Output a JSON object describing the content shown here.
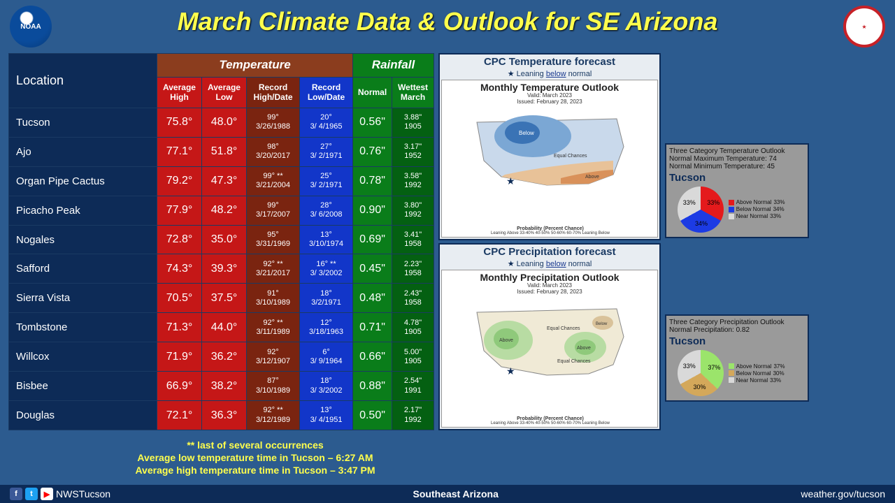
{
  "title": "March Climate Data & Outlook for SE Arizona",
  "logos": {
    "noaa": "NOAA",
    "nws": "NWS"
  },
  "headers": {
    "location": "Location",
    "temp": "Temperature",
    "rain": "Rainfall",
    "avgHigh": "Average High",
    "avgLow": "Average Low",
    "recHigh": "Record High/Date",
    "recLow": "Record Low/Date",
    "normal": "Normal",
    "wettest": "Wettest March"
  },
  "rows": [
    {
      "loc": "Tucson",
      "ah": "75.8°",
      "al": "48.0°",
      "rh": "99°",
      "rhd": "3/26/1988",
      "rl": "20°",
      "rld": "3/ 4/1965",
      "n": "0.56\"",
      "w": "3.88\"",
      "wy": "1905"
    },
    {
      "loc": "Ajo",
      "ah": "77.1°",
      "al": "51.8°",
      "rh": "98°",
      "rhd": "3/20/2017",
      "rl": "27°",
      "rld": "3/ 2/1971",
      "n": "0.76\"",
      "w": "3.17\"",
      "wy": "1952"
    },
    {
      "loc": "Organ Pipe Cactus",
      "ah": "79.2°",
      "al": "47.3°",
      "rh": "99° **",
      "rhd": "3/21/2004",
      "rl": "25°",
      "rld": "3/ 2/1971",
      "n": "0.78\"",
      "w": "3.58\"",
      "wy": "1992"
    },
    {
      "loc": "Picacho Peak",
      "ah": "77.9°",
      "al": "48.2°",
      "rh": "99°",
      "rhd": "3/17/2007",
      "rl": "28°",
      "rld": "3/ 6/2008",
      "n": "0.90\"",
      "w": "3.80\"",
      "wy": "1992"
    },
    {
      "loc": "Nogales",
      "ah": "72.8°",
      "al": "35.0°",
      "rh": "95°",
      "rhd": "3/31/1969",
      "rl": "13°",
      "rld": "3/10/1974",
      "n": "0.69\"",
      "w": "3.41\"",
      "wy": "1958"
    },
    {
      "loc": "Safford",
      "ah": "74.3°",
      "al": "39.3°",
      "rh": "92° **",
      "rhd": "3/21/2017",
      "rl": "16° **",
      "rld": "3/ 3/2002",
      "n": "0.45\"",
      "w": "2.23\"",
      "wy": "1958"
    },
    {
      "loc": "Sierra Vista",
      "ah": "70.5°",
      "al": "37.5°",
      "rh": "91°",
      "rhd": "3/10/1989",
      "rl": "18°",
      "rld": "3/2/1971",
      "n": "0.48\"",
      "w": "2.43\"",
      "wy": "1958"
    },
    {
      "loc": "Tombstone",
      "ah": "71.3°",
      "al": "44.0°",
      "rh": "92° **",
      "rhd": "3/11/1989",
      "rl": "12°",
      "rld": "3/18/1963",
      "n": "0.71\"",
      "w": "4.78\"",
      "wy": "1905"
    },
    {
      "loc": "Willcox",
      "ah": "71.9°",
      "al": "36.2°",
      "rh": "92°",
      "rhd": "3/12/1907",
      "rl": "6°",
      "rld": "3/ 9/1964",
      "n": "0.66\"",
      "w": "5.00\"",
      "wy": "1905"
    },
    {
      "loc": "Bisbee",
      "ah": "66.9°",
      "al": "38.2°",
      "rh": "87°",
      "rhd": "3/10/1989",
      "rl": "18°",
      "rld": "3/ 3/2002",
      "n": "0.88\"",
      "w": "2.54\"",
      "wy": "1991"
    },
    {
      "loc": "Douglas",
      "ah": "72.1°",
      "al": "36.3°",
      "rh": "92° **",
      "rhd": "3/12/1989",
      "rl": "13°",
      "rld": "3/ 4/1951",
      "n": "0.50\"",
      "w": "2.17\"",
      "wy": "1992"
    }
  ],
  "notes": {
    "l1": "** last of several occurrences",
    "l2": "Average low temperature time in Tucson – 6:27 AM",
    "l3": "Average high temperature time in Tucson – 3:47 PM"
  },
  "tempForecast": {
    "title": "CPC Temperature forecast",
    "lean": "Leaning below normal",
    "mapTitle": "Monthly Temperature Outlook",
    "valid": "Valid: March 2023",
    "issued": "Issued: February 28, 2023",
    "legendTitle": "Probability (Percent Chance)",
    "colors": {
      "below": "#7ba7d4",
      "belowDark": "#3a73b5",
      "above": "#d9915a",
      "equal": "#f0ead6"
    }
  },
  "precipForecast": {
    "title": "CPC Precipitation forecast",
    "lean": "Leaning below normal",
    "mapTitle": "Monthly Precipitation Outlook",
    "valid": "Valid: March 2023",
    "issued": "Issued: February 28, 2023",
    "legendTitle": "Probability (Percent Chance)",
    "colors": {
      "above": "#8fc97b",
      "aboveDark": "#5ba045",
      "below": "#c9a56b",
      "equal": "#f0ead6"
    }
  },
  "tempPie": {
    "title": "Three Category Temperature Outlook",
    "normMax": "Normal Maximum Temperature: 74",
    "normMin": "Normal Minimum Temperature: 45",
    "city": "Tucson",
    "slices": {
      "above": 33,
      "below": 34,
      "near": 33
    },
    "colors": {
      "above": "#e41a1c",
      "below": "#1c3be4",
      "near": "#d9d9d9"
    },
    "labels": {
      "above": "Above Normal",
      "below": "Below Normal",
      "near": "Near Normal"
    },
    "pct": {
      "above": "33%",
      "below": "34%",
      "near": "33%"
    }
  },
  "precipPie": {
    "title": "Three Category Precipitation Outlook",
    "norm": "Normal Precipitation: 0.82",
    "city": "Tucson",
    "slices": {
      "above": 37,
      "below": 30,
      "near": 33
    },
    "colors": {
      "above": "#9be46b",
      "below": "#d4a85a",
      "near": "#d9d9d9"
    },
    "labels": {
      "above": "Above Normal",
      "below": "Below Normal",
      "near": "Near Normal"
    },
    "pct": {
      "above": "37%",
      "below": "30%",
      "near": "33%"
    }
  },
  "footer": {
    "handle": "NWSTucson",
    "region": "Southeast Arizona",
    "url": "weather.gov/tucson"
  }
}
